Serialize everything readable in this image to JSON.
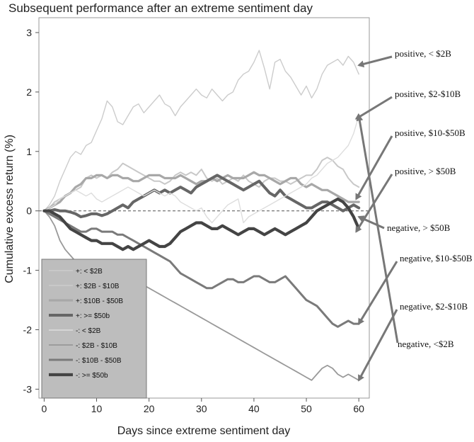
{
  "chart_data": {
    "type": "line",
    "title": "Subsequent performance after an extreme sentiment day",
    "xlabel": "Days since extreme sentiment day",
    "ylabel": "Cumulative excess return (%)",
    "xlim": [
      -1,
      62
    ],
    "ylim": [
      -3.15,
      3.25
    ],
    "xticks": [
      0,
      10,
      20,
      30,
      40,
      50,
      60
    ],
    "yticks": [
      -3,
      -2,
      -1,
      0,
      1,
      2,
      3
    ],
    "reference_line": {
      "y": 0,
      "style": "dashed"
    },
    "legend": {
      "placement": "bottom-left"
    },
    "series": [
      {
        "name": "+: < $2B",
        "color": "#cccccc",
        "width": 1.4,
        "x_start": 0,
        "values": [
          0,
          0.1,
          0.25,
          0.5,
          0.7,
          0.9,
          1.0,
          0.95,
          1.1,
          1.15,
          1.35,
          1.55,
          1.85,
          1.75,
          1.5,
          1.45,
          1.6,
          1.75,
          1.8,
          1.65,
          1.75,
          1.85,
          1.95,
          1.8,
          1.75,
          1.6,
          1.75,
          1.85,
          1.95,
          2.05,
          1.95,
          1.9,
          2.05,
          1.95,
          1.85,
          1.95,
          2.0,
          2.2,
          2.3,
          2.35,
          2.5,
          2.7,
          2.4,
          2.05,
          2.5,
          2.55,
          2.35,
          2.25,
          2.1,
          1.95,
          2.1,
          1.9,
          2.05,
          2.3,
          2.45,
          2.5,
          2.55,
          2.45,
          2.6,
          2.5,
          2.3
        ]
      },
      {
        "name": "+: $2B - $10B",
        "color": "#c8c8c8",
        "width": 2.0,
        "x_start": 0,
        "values": [
          0,
          0.05,
          0.15,
          0.2,
          0.25,
          0.3,
          0.35,
          0.4,
          0.55,
          0.6,
          0.55,
          0.6,
          0.55,
          0.65,
          0.7,
          0.8,
          0.75,
          0.7,
          0.65,
          0.6,
          0.55,
          0.5,
          0.5,
          0.45,
          0.5,
          0.6,
          0.65,
          0.6,
          0.65,
          0.6,
          0.7,
          0.55,
          0.5,
          0.55,
          0.45,
          0.5,
          0.55,
          0.5,
          0.6,
          0.5,
          0.45,
          0.4,
          0.5,
          0.55,
          0.55,
          0.5,
          0.5,
          0.45,
          0.5,
          0.55,
          0.6,
          0.6,
          0.7,
          0.85,
          0.9,
          0.85,
          0.75,
          0.7,
          0.55,
          0.45,
          0.4
        ]
      },
      {
        "name": "+: $10B - $50B",
        "color": "#a8a8a8",
        "width": 3.2,
        "x_start": 0,
        "values": [
          0,
          0.05,
          0.1,
          0.15,
          0.25,
          0.3,
          0.4,
          0.45,
          0.55,
          0.55,
          0.6,
          0.6,
          0.55,
          0.6,
          0.6,
          0.55,
          0.55,
          0.5,
          0.5,
          0.55,
          0.6,
          0.6,
          0.6,
          0.55,
          0.55,
          0.55,
          0.6,
          0.55,
          0.5,
          0.45,
          0.5,
          0.5,
          0.55,
          0.5,
          0.55,
          0.6,
          0.55,
          0.55,
          0.55,
          0.6,
          0.65,
          0.6,
          0.6,
          0.55,
          0.5,
          0.45,
          0.5,
          0.55,
          0.55,
          0.45,
          0.4,
          0.45,
          0.4,
          0.35,
          0.35,
          0.3,
          0.25,
          0.2,
          0.15,
          0.15,
          0.15
        ]
      },
      {
        "name": "+: >= $50b",
        "color": "#666666",
        "width": 4.0,
        "x_start": 0,
        "values": [
          0,
          0.0,
          0.02,
          0.0,
          0.0,
          -0.02,
          -0.05,
          -0.1,
          -0.08,
          -0.05,
          -0.05,
          -0.08,
          -0.05,
          0.0,
          0.05,
          0.1,
          0.05,
          0.15,
          0.2,
          0.25,
          0.3,
          0.35,
          0.3,
          0.35,
          0.3,
          0.35,
          0.4,
          0.35,
          0.3,
          0.4,
          0.45,
          0.5,
          0.55,
          0.6,
          0.55,
          0.5,
          0.45,
          0.4,
          0.35,
          0.4,
          0.45,
          0.5,
          0.4,
          0.3,
          0.25,
          0.35,
          0.25,
          0.2,
          0.15,
          0.1,
          0.05,
          0.05,
          0.1,
          0.15,
          0.15,
          0.1,
          0.05,
          0.0,
          0.05,
          0.1,
          0.05
        ]
      },
      {
        "name": "-: < $2B",
        "color": "#dddddd",
        "width": 1.4,
        "x_start": 0,
        "values": [
          0,
          0.05,
          0.1,
          0.2,
          0.25,
          0.3,
          0.35,
          0.3,
          0.25,
          0.3,
          0.2,
          0.15,
          0.2,
          0.25,
          0.3,
          0.35,
          0.4,
          0.35,
          0.3,
          0.25,
          0.3,
          0.35,
          0.3,
          0.25,
          0.3,
          0.25,
          0.15,
          0.1,
          0.05,
          0.0,
          0.05,
          -0.1,
          -0.2,
          -0.1,
          0.0,
          0.1,
          0.15,
          0.2,
          -0.2,
          -0.1,
          -0.05,
          0.0,
          0.05,
          0.1,
          0.15,
          0.2,
          0.25,
          0.3,
          0.35,
          0.4,
          0.45,
          0.55,
          0.6,
          0.7,
          0.8,
          0.85,
          0.9,
          1.0,
          1.1,
          1.3,
          1.6
        ]
      },
      {
        "name": "-: $2B - $10B",
        "color": "#999999",
        "width": 1.8,
        "x_start": 0,
        "values": [
          0,
          -0.1,
          -0.25,
          -0.5,
          -0.65,
          -0.75,
          -0.85,
          -0.9,
          -0.95,
          -1.0,
          -1.0,
          -1.05,
          -1.1,
          -1.15,
          -1.2,
          -1.15,
          -1.1,
          -1.15,
          -1.2,
          -1.25,
          -1.3,
          -1.35,
          -1.4,
          -1.45,
          -1.5,
          -1.55,
          -1.6,
          -1.65,
          -1.7,
          -1.75,
          -1.8,
          -1.85,
          -1.9,
          -1.95,
          -2.0,
          -2.05,
          -2.1,
          -2.15,
          -2.2,
          -2.25,
          -2.3,
          -2.35,
          -2.4,
          -2.45,
          -2.5,
          -2.55,
          -2.6,
          -2.65,
          -2.7,
          -2.75,
          -2.8,
          -2.85,
          -2.75,
          -2.65,
          -2.6,
          -2.65,
          -2.75,
          -2.8,
          -2.75,
          -2.8,
          -2.85
        ]
      },
      {
        "name": "-: $10B - $50B",
        "color": "#7a7a7a",
        "width": 3.0,
        "x_start": 0,
        "values": [
          0,
          -0.05,
          -0.1,
          -0.15,
          -0.2,
          -0.25,
          -0.3,
          -0.35,
          -0.35,
          -0.3,
          -0.3,
          -0.35,
          -0.35,
          -0.35,
          -0.4,
          -0.4,
          -0.45,
          -0.5,
          -0.55,
          -0.6,
          -0.65,
          -0.7,
          -0.75,
          -0.8,
          -0.85,
          -0.95,
          -1.05,
          -1.1,
          -1.15,
          -1.2,
          -1.25,
          -1.3,
          -1.3,
          -1.25,
          -1.2,
          -1.15,
          -1.15,
          -1.2,
          -1.2,
          -1.15,
          -1.1,
          -1.1,
          -1.15,
          -1.2,
          -1.2,
          -1.15,
          -1.1,
          -1.2,
          -1.3,
          -1.4,
          -1.5,
          -1.55,
          -1.6,
          -1.7,
          -1.8,
          -1.9,
          -1.95,
          -1.9,
          -1.85,
          -1.9,
          -1.9
        ]
      },
      {
        "name": "-: >= $50b",
        "color": "#444444",
        "width": 4.2,
        "x_start": 0,
        "values": [
          0,
          0.0,
          -0.05,
          -0.1,
          -0.2,
          -0.3,
          -0.35,
          -0.4,
          -0.45,
          -0.5,
          -0.5,
          -0.55,
          -0.55,
          -0.55,
          -0.6,
          -0.65,
          -0.6,
          -0.65,
          -0.6,
          -0.55,
          -0.5,
          -0.55,
          -0.6,
          -0.6,
          -0.55,
          -0.45,
          -0.35,
          -0.3,
          -0.25,
          -0.2,
          -0.2,
          -0.25,
          -0.3,
          -0.3,
          -0.25,
          -0.3,
          -0.35,
          -0.4,
          -0.35,
          -0.3,
          -0.3,
          -0.35,
          -0.4,
          -0.35,
          -0.3,
          -0.35,
          -0.4,
          -0.35,
          -0.3,
          -0.25,
          -0.2,
          -0.1,
          0.0,
          0.05,
          0.1,
          0.15,
          0.2,
          0.15,
          0.05,
          -0.1,
          -0.3
        ]
      }
    ],
    "annotations": [
      {
        "text": "positive, < $2B",
        "target": [
          60,
          2.45
        ]
      },
      {
        "text": "positive, $2-$10B",
        "target": [
          59.5,
          1.55
        ]
      },
      {
        "text": "positive, $10-$50B",
        "target": [
          59.5,
          0.2
        ]
      },
      {
        "text": "positive, > $50B",
        "target": [
          59.5,
          -0.35
        ]
      },
      {
        "text": "negative, > $50B",
        "target": [
          60,
          -0.1
        ]
      },
      {
        "text": "negative,  $10-$50B",
        "target": [
          60,
          -1.9
        ]
      },
      {
        "text": "negative, $2-$10B",
        "target": [
          60,
          -2.85
        ]
      },
      {
        "text": "negative, <$2B",
        "target": [
          60,
          1.6
        ]
      }
    ]
  }
}
